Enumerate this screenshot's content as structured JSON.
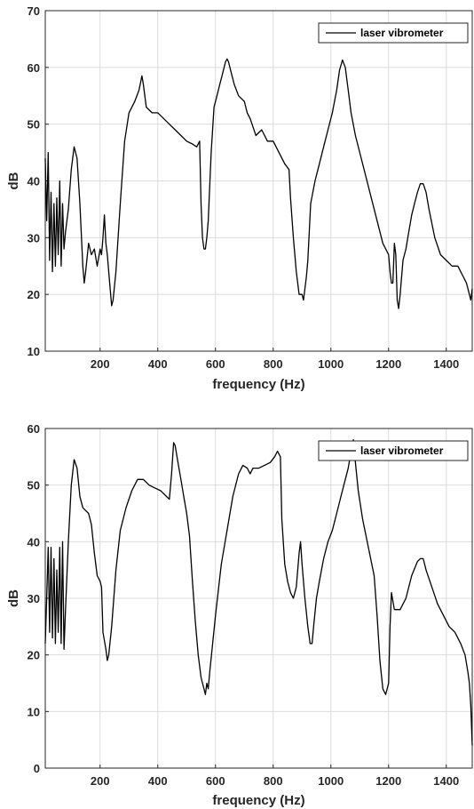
{
  "chart_data": [
    {
      "type": "line",
      "xlabel": "frequency (Hz)",
      "ylabel": "dB",
      "xlim": [
        10,
        1490
      ],
      "ylim": [
        10,
        70
      ],
      "xticks": [
        200,
        400,
        600,
        800,
        1000,
        1200,
        1400
      ],
      "yticks": [
        10,
        20,
        30,
        40,
        50,
        60,
        70
      ],
      "grid": true,
      "legend_position": "top-right",
      "series": [
        {
          "name": "laser vibrometer",
          "color": "#000000",
          "points": [
            [
              10,
              44
            ],
            [
              15,
              33
            ],
            [
              20,
              45
            ],
            [
              25,
              26
            ],
            [
              30,
              38
            ],
            [
              35,
              24
            ],
            [
              40,
              36
            ],
            [
              45,
              25
            ],
            [
              50,
              37
            ],
            [
              55,
              27
            ],
            [
              60,
              40
            ],
            [
              65,
              25
            ],
            [
              70,
              36
            ],
            [
              75,
              28
            ],
            [
              80,
              31
            ],
            [
              90,
              35
            ],
            [
              100,
              42
            ],
            [
              110,
              46
            ],
            [
              120,
              44
            ],
            [
              130,
              36
            ],
            [
              140,
              25
            ],
            [
              145,
              22
            ],
            [
              150,
              24
            ],
            [
              160,
              29
            ],
            [
              170,
              27
            ],
            [
              180,
              28
            ],
            [
              190,
              25
            ],
            [
              200,
              28
            ],
            [
              205,
              27
            ],
            [
              210,
              30
            ],
            [
              215,
              34
            ],
            [
              220,
              29
            ],
            [
              225,
              27
            ],
            [
              235,
              21
            ],
            [
              240,
              18
            ],
            [
              245,
              19
            ],
            [
              255,
              24
            ],
            [
              270,
              36
            ],
            [
              285,
              47
            ],
            [
              300,
              52
            ],
            [
              320,
              54
            ],
            [
              335,
              56
            ],
            [
              345,
              58.5
            ],
            [
              350,
              57
            ],
            [
              360,
              53
            ],
            [
              380,
              52
            ],
            [
              400,
              52
            ],
            [
              420,
              51
            ],
            [
              440,
              50
            ],
            [
              460,
              49
            ],
            [
              480,
              48
            ],
            [
              500,
              47
            ],
            [
              520,
              46.5
            ],
            [
              535,
              46
            ],
            [
              545,
              47
            ],
            [
              550,
              36
            ],
            [
              555,
              30
            ],
            [
              560,
              28
            ],
            [
              565,
              28
            ],
            [
              570,
              30
            ],
            [
              575,
              33
            ],
            [
              585,
              45
            ],
            [
              595,
              53
            ],
            [
              605,
              55
            ],
            [
              615,
              57
            ],
            [
              625,
              59
            ],
            [
              635,
              61
            ],
            [
              640,
              61.5
            ],
            [
              645,
              61
            ],
            [
              655,
              59
            ],
            [
              665,
              57
            ],
            [
              680,
              55
            ],
            [
              700,
              54
            ],
            [
              710,
              52
            ],
            [
              720,
              51
            ],
            [
              740,
              48
            ],
            [
              760,
              49
            ],
            [
              780,
              47
            ],
            [
              800,
              47
            ],
            [
              820,
              45
            ],
            [
              840,
              43
            ],
            [
              855,
              42
            ],
            [
              860,
              37
            ],
            [
              870,
              30
            ],
            [
              880,
              24
            ],
            [
              890,
              20
            ],
            [
              900,
              20
            ],
            [
              905,
              19
            ],
            [
              910,
              21
            ],
            [
              915,
              23
            ],
            [
              920,
              26
            ],
            [
              930,
              36
            ],
            [
              945,
              40
            ],
            [
              960,
              43
            ],
            [
              975,
              46
            ],
            [
              990,
              49
            ],
            [
              1005,
              52
            ],
            [
              1020,
              56
            ],
            [
              1030,
              59.5
            ],
            [
              1040,
              61.3
            ],
            [
              1050,
              60
            ],
            [
              1060,
              56
            ],
            [
              1070,
              52
            ],
            [
              1085,
              48
            ],
            [
              1100,
              45
            ],
            [
              1120,
              41
            ],
            [
              1140,
              37
            ],
            [
              1160,
              33
            ],
            [
              1180,
              29
            ],
            [
              1200,
              27
            ],
            [
              1205,
              24
            ],
            [
              1210,
              22
            ],
            [
              1215,
              22
            ],
            [
              1220,
              29
            ],
            [
              1225,
              27
            ],
            [
              1230,
              19
            ],
            [
              1235,
              17.5
            ],
            [
              1240,
              20
            ],
            [
              1250,
              26
            ],
            [
              1260,
              28
            ],
            [
              1270,
              31
            ],
            [
              1280,
              34
            ],
            [
              1290,
              36
            ],
            [
              1300,
              38
            ],
            [
              1310,
              39.5
            ],
            [
              1320,
              39.5
            ],
            [
              1330,
              38
            ],
            [
              1340,
              35
            ],
            [
              1360,
              30
            ],
            [
              1380,
              27
            ],
            [
              1400,
              26
            ],
            [
              1420,
              25
            ],
            [
              1440,
              25
            ],
            [
              1460,
              23
            ],
            [
              1470,
              22
            ],
            [
              1480,
              20
            ],
            [
              1485,
              19
            ],
            [
              1490,
              21
            ]
          ]
        }
      ]
    },
    {
      "type": "line",
      "xlabel": "frequency (Hz)",
      "ylabel": "dB",
      "xlim": [
        10,
        1490
      ],
      "ylim": [
        0,
        60
      ],
      "xticks": [
        200,
        400,
        600,
        800,
        1000,
        1200,
        1400
      ],
      "yticks": [
        0,
        10,
        20,
        30,
        40,
        50,
        60
      ],
      "grid": true,
      "legend_position": "top-right",
      "series": [
        {
          "name": "laser vibrometer",
          "color": "#000000",
          "points": [
            [
              10,
              22
            ],
            [
              15,
              30
            ],
            [
              20,
              39
            ],
            [
              25,
              24
            ],
            [
              30,
              39
            ],
            [
              35,
              23
            ],
            [
              40,
              37
            ],
            [
              45,
              22
            ],
            [
              50,
              35
            ],
            [
              55,
              24
            ],
            [
              60,
              39
            ],
            [
              65,
              22
            ],
            [
              70,
              40
            ],
            [
              75,
              21
            ],
            [
              80,
              28
            ],
            [
              90,
              40
            ],
            [
              100,
              50
            ],
            [
              110,
              54.5
            ],
            [
              120,
              53
            ],
            [
              130,
              48
            ],
            [
              140,
              46
            ],
            [
              150,
              45.5
            ],
            [
              160,
              45
            ],
            [
              170,
              43
            ],
            [
              180,
              38
            ],
            [
              190,
              34
            ],
            [
              200,
              33
            ],
            [
              205,
              32
            ],
            [
              210,
              24
            ],
            [
              220,
              21
            ],
            [
              225,
              19
            ],
            [
              230,
              20
            ],
            [
              240,
              25
            ],
            [
              255,
              35
            ],
            [
              270,
              42
            ],
            [
              290,
              46
            ],
            [
              310,
              49
            ],
            [
              330,
              51
            ],
            [
              350,
              51
            ],
            [
              370,
              50
            ],
            [
              390,
              49.5
            ],
            [
              410,
              49
            ],
            [
              430,
              48
            ],
            [
              440,
              47.5
            ],
            [
              448,
              52
            ],
            [
              455,
              57.5
            ],
            [
              460,
              57
            ],
            [
              470,
              54
            ],
            [
              480,
              51
            ],
            [
              490,
              48
            ],
            [
              500,
              45
            ],
            [
              510,
              41
            ],
            [
              520,
              33
            ],
            [
              530,
              26
            ],
            [
              540,
              20
            ],
            [
              550,
              16
            ],
            [
              560,
              14
            ],
            [
              565,
              13
            ],
            [
              570,
              15
            ],
            [
              575,
              14
            ],
            [
              580,
              17
            ],
            [
              600,
              27
            ],
            [
              620,
              36
            ],
            [
              640,
              42
            ],
            [
              660,
              48
            ],
            [
              680,
              52
            ],
            [
              695,
              53.5
            ],
            [
              710,
              53
            ],
            [
              720,
              52
            ],
            [
              730,
              53
            ],
            [
              750,
              53
            ],
            [
              770,
              53.5
            ],
            [
              790,
              54
            ],
            [
              805,
              55
            ],
            [
              815,
              56
            ],
            [
              825,
              55
            ],
            [
              830,
              44
            ],
            [
              840,
              36
            ],
            [
              850,
              33
            ],
            [
              860,
              31
            ],
            [
              870,
              30
            ],
            [
              880,
              32
            ],
            [
              890,
              38
            ],
            [
              895,
              40
            ],
            [
              900,
              36
            ],
            [
              910,
              30
            ],
            [
              920,
              25
            ],
            [
              928,
              22
            ],
            [
              935,
              22
            ],
            [
              940,
              25
            ],
            [
              950,
              30
            ],
            [
              960,
              33
            ],
            [
              975,
              37
            ],
            [
              990,
              40
            ],
            [
              1005,
              42
            ],
            [
              1020,
              45
            ],
            [
              1035,
              48
            ],
            [
              1050,
              51
            ],
            [
              1060,
              53
            ],
            [
              1070,
              56
            ],
            [
              1078,
              58
            ],
            [
              1085,
              54
            ],
            [
              1095,
              49
            ],
            [
              1110,
              44
            ],
            [
              1130,
              39
            ],
            [
              1150,
              34
            ],
            [
              1160,
              27
            ],
            [
              1170,
              19
            ],
            [
              1180,
              14
            ],
            [
              1190,
              13
            ],
            [
              1200,
              15
            ],
            [
              1205,
              25
            ],
            [
              1210,
              31
            ],
            [
              1220,
              28
            ],
            [
              1240,
              28
            ],
            [
              1260,
              30
            ],
            [
              1280,
              34
            ],
            [
              1300,
              36.5
            ],
            [
              1310,
              37
            ],
            [
              1320,
              37
            ],
            [
              1330,
              35
            ],
            [
              1350,
              32
            ],
            [
              1370,
              29
            ],
            [
              1390,
              27
            ],
            [
              1410,
              25
            ],
            [
              1430,
              24
            ],
            [
              1450,
              22
            ],
            [
              1465,
              20
            ],
            [
              1475,
              17
            ],
            [
              1480,
              15
            ],
            [
              1485,
              11
            ],
            [
              1490,
              4
            ]
          ]
        }
      ]
    }
  ]
}
